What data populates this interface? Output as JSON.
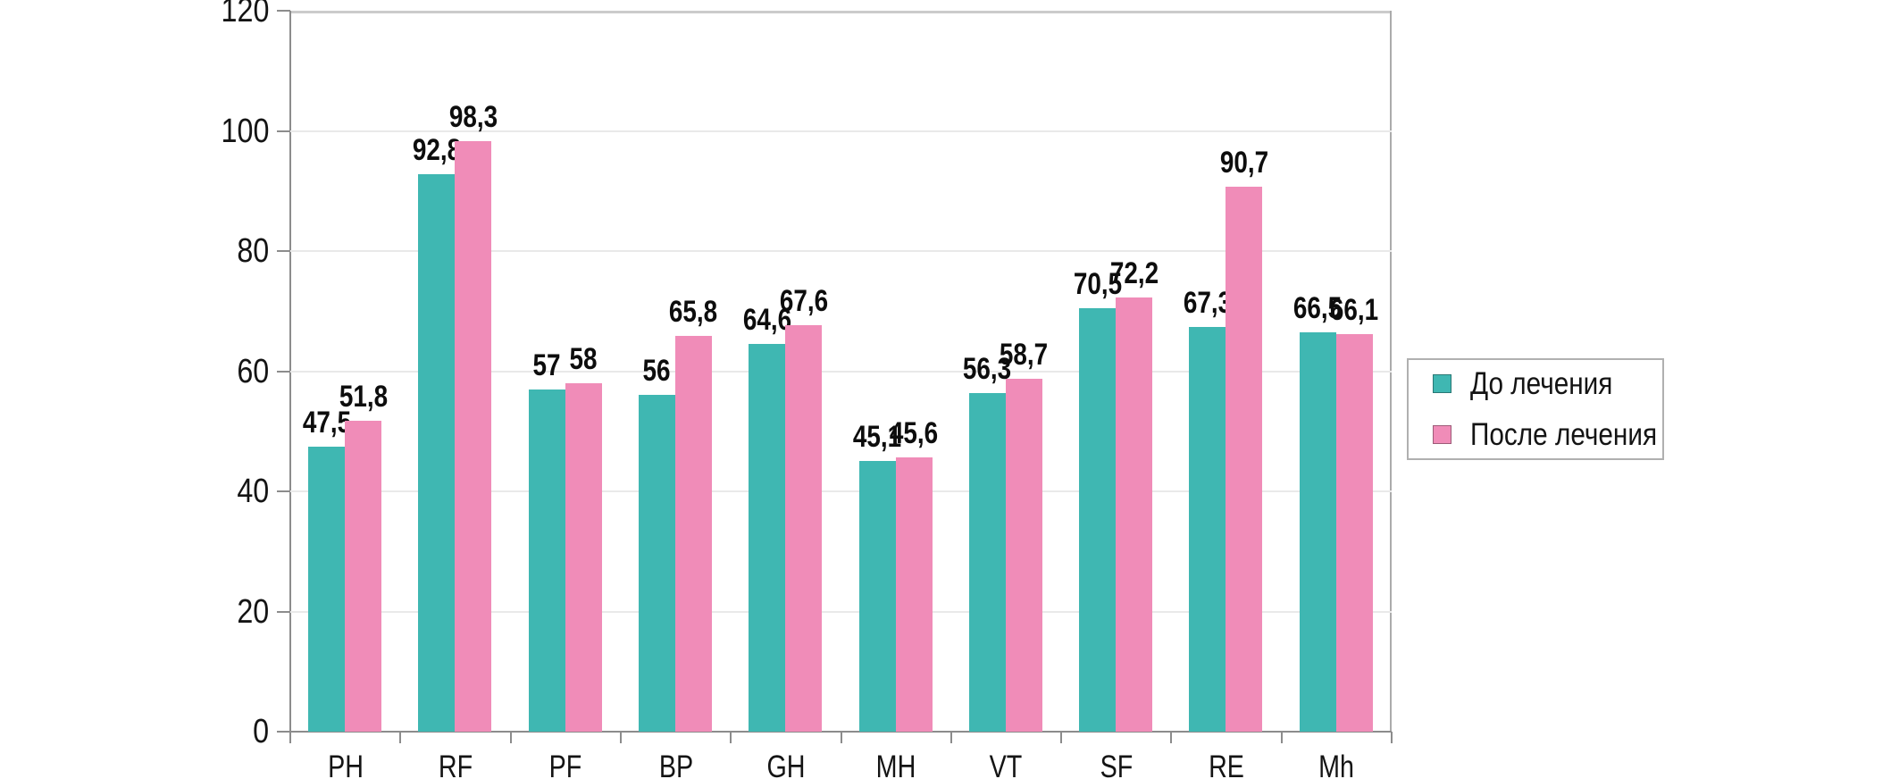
{
  "chart_data": {
    "type": "bar",
    "title": "",
    "xlabel": "",
    "ylabel": "",
    "categories": [
      "PH",
      "RF",
      "PF",
      "BP",
      "GH",
      "MH",
      "VT",
      "SF",
      "RE",
      "Mh"
    ],
    "series": [
      {
        "name": "До лечения",
        "color": "#3FB7B2",
        "values": [
          47.5,
          92.8,
          57,
          56,
          64.6,
          45.1,
          56.3,
          70.5,
          67.3,
          66.5
        ],
        "labels": [
          "47,5",
          "92,8",
          "57",
          "56",
          "64,6",
          "45,1",
          "56,3",
          "70,5",
          "67,3",
          "66,5"
        ]
      },
      {
        "name": "После лечения",
        "color": "#F08CB8",
        "values": [
          51.8,
          98.3,
          58,
          65.8,
          67.6,
          45.6,
          58.7,
          72.2,
          90.7,
          66.1
        ],
        "labels": [
          "51,8",
          "98,3",
          "58",
          "65,8",
          "67,6",
          "45,6",
          "58,7",
          "72,2",
          "90,7",
          "66,1"
        ]
      }
    ],
    "ylim": [
      0,
      120
    ],
    "yticks": [
      0,
      20,
      40,
      60,
      80,
      100,
      120
    ],
    "ytick_labels": [
      "0",
      "20",
      "40",
      "60",
      "80",
      "100",
      "120"
    ],
    "grid": true,
    "legend_position": "right",
    "decimal_separator": ","
  },
  "legend": {
    "items": [
      {
        "label": "До лечения",
        "color": "#3FB7B2"
      },
      {
        "label": "После лечения",
        "color": "#F08CB8"
      }
    ]
  }
}
